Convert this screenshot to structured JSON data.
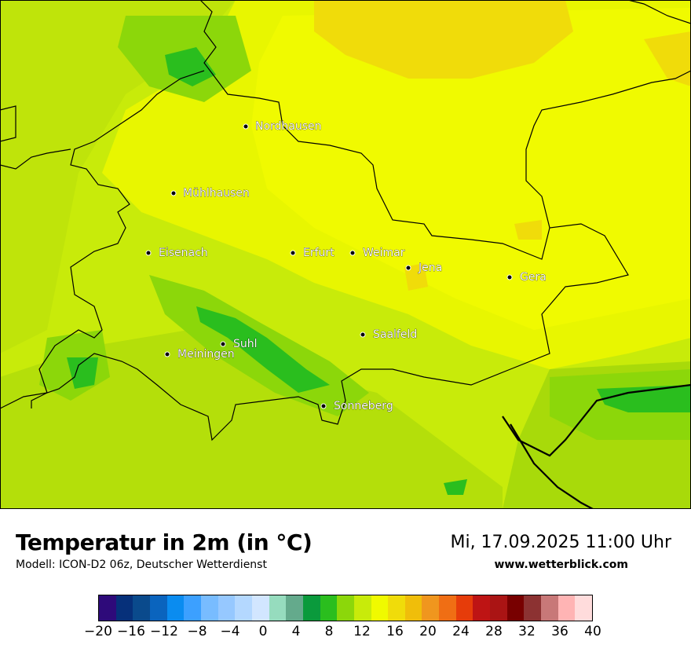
{
  "title": "Temperatur in 2m (in °C)",
  "model": "Modell: ICON-D2 06z, Deutscher Wetterdienst",
  "datetime": "Mi, 17.09.2025 11:00 Uhr",
  "site": "www.wetterblick.com",
  "cities": [
    {
      "name": "Nordhausen"
    },
    {
      "name": "Mühlhausen"
    },
    {
      "name": "Eisenach"
    },
    {
      "name": "Erfurt"
    },
    {
      "name": "Weimar"
    },
    {
      "name": "Jena"
    },
    {
      "name": "Gera"
    },
    {
      "name": "Suhl"
    },
    {
      "name": "Meiningen"
    },
    {
      "name": "Saalfeld"
    },
    {
      "name": "Sonneberg"
    }
  ],
  "legend": {
    "colors": [
      "#2e0a7a",
      "#06307a",
      "#0a4a8c",
      "#0a64be",
      "#0a8cf0",
      "#3ca0ff",
      "#78bcff",
      "#96c8ff",
      "#b4d8ff",
      "#d2e6ff",
      "#96dcbe",
      "#64aa8c",
      "#0a9a3c",
      "#2abe1e",
      "#8cd70a",
      "#c8eb0a",
      "#f0fa00",
      "#f0dc0a",
      "#f0be0a",
      "#f0961e",
      "#f06e14",
      "#e63c0a",
      "#be1414",
      "#aa1414",
      "#780000",
      "#8c3232",
      "#c87878",
      "#ffb4b4",
      "#ffdcdc"
    ],
    "ticks": [
      "−20",
      "−16",
      "−12",
      "−8",
      "−4",
      "0",
      "4",
      "8",
      "12",
      "16",
      "20",
      "24",
      "28",
      "32",
      "36",
      "40"
    ]
  }
}
